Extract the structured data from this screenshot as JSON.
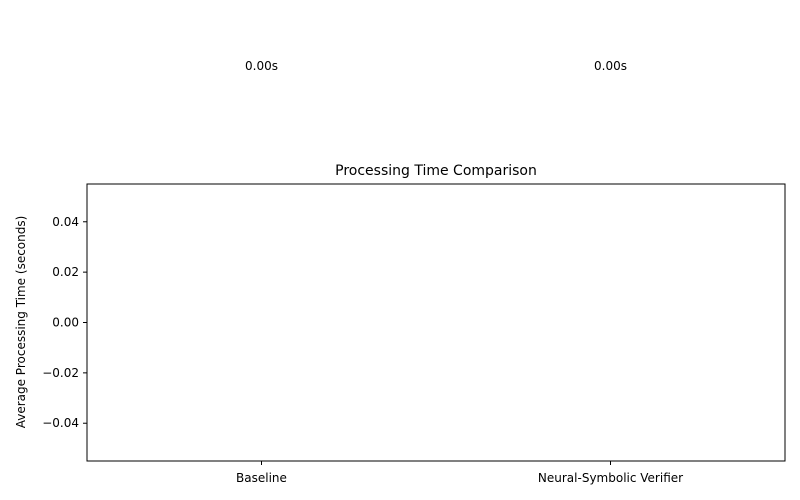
{
  "chart_data": {
    "type": "bar",
    "title": "Processing Time Comparison",
    "xlabel": "",
    "ylabel": "Average Processing Time (seconds)",
    "categories": [
      "Baseline",
      "Neural-Symbolic Verifier"
    ],
    "values": [
      0.0,
      0.0
    ],
    "data_labels": [
      "0.00s",
      "0.00s"
    ],
    "ylim": [
      -0.055,
      0.055
    ],
    "yticks": [
      {
        "value": 0.04,
        "label": "0.04"
      },
      {
        "value": 0.02,
        "label": "0.02"
      },
      {
        "value": 0.0,
        "label": "0.00"
      },
      {
        "value": -0.02,
        "label": "−0.02"
      },
      {
        "value": -0.04,
        "label": "−0.04"
      }
    ],
    "grid": false,
    "legend": "none"
  }
}
